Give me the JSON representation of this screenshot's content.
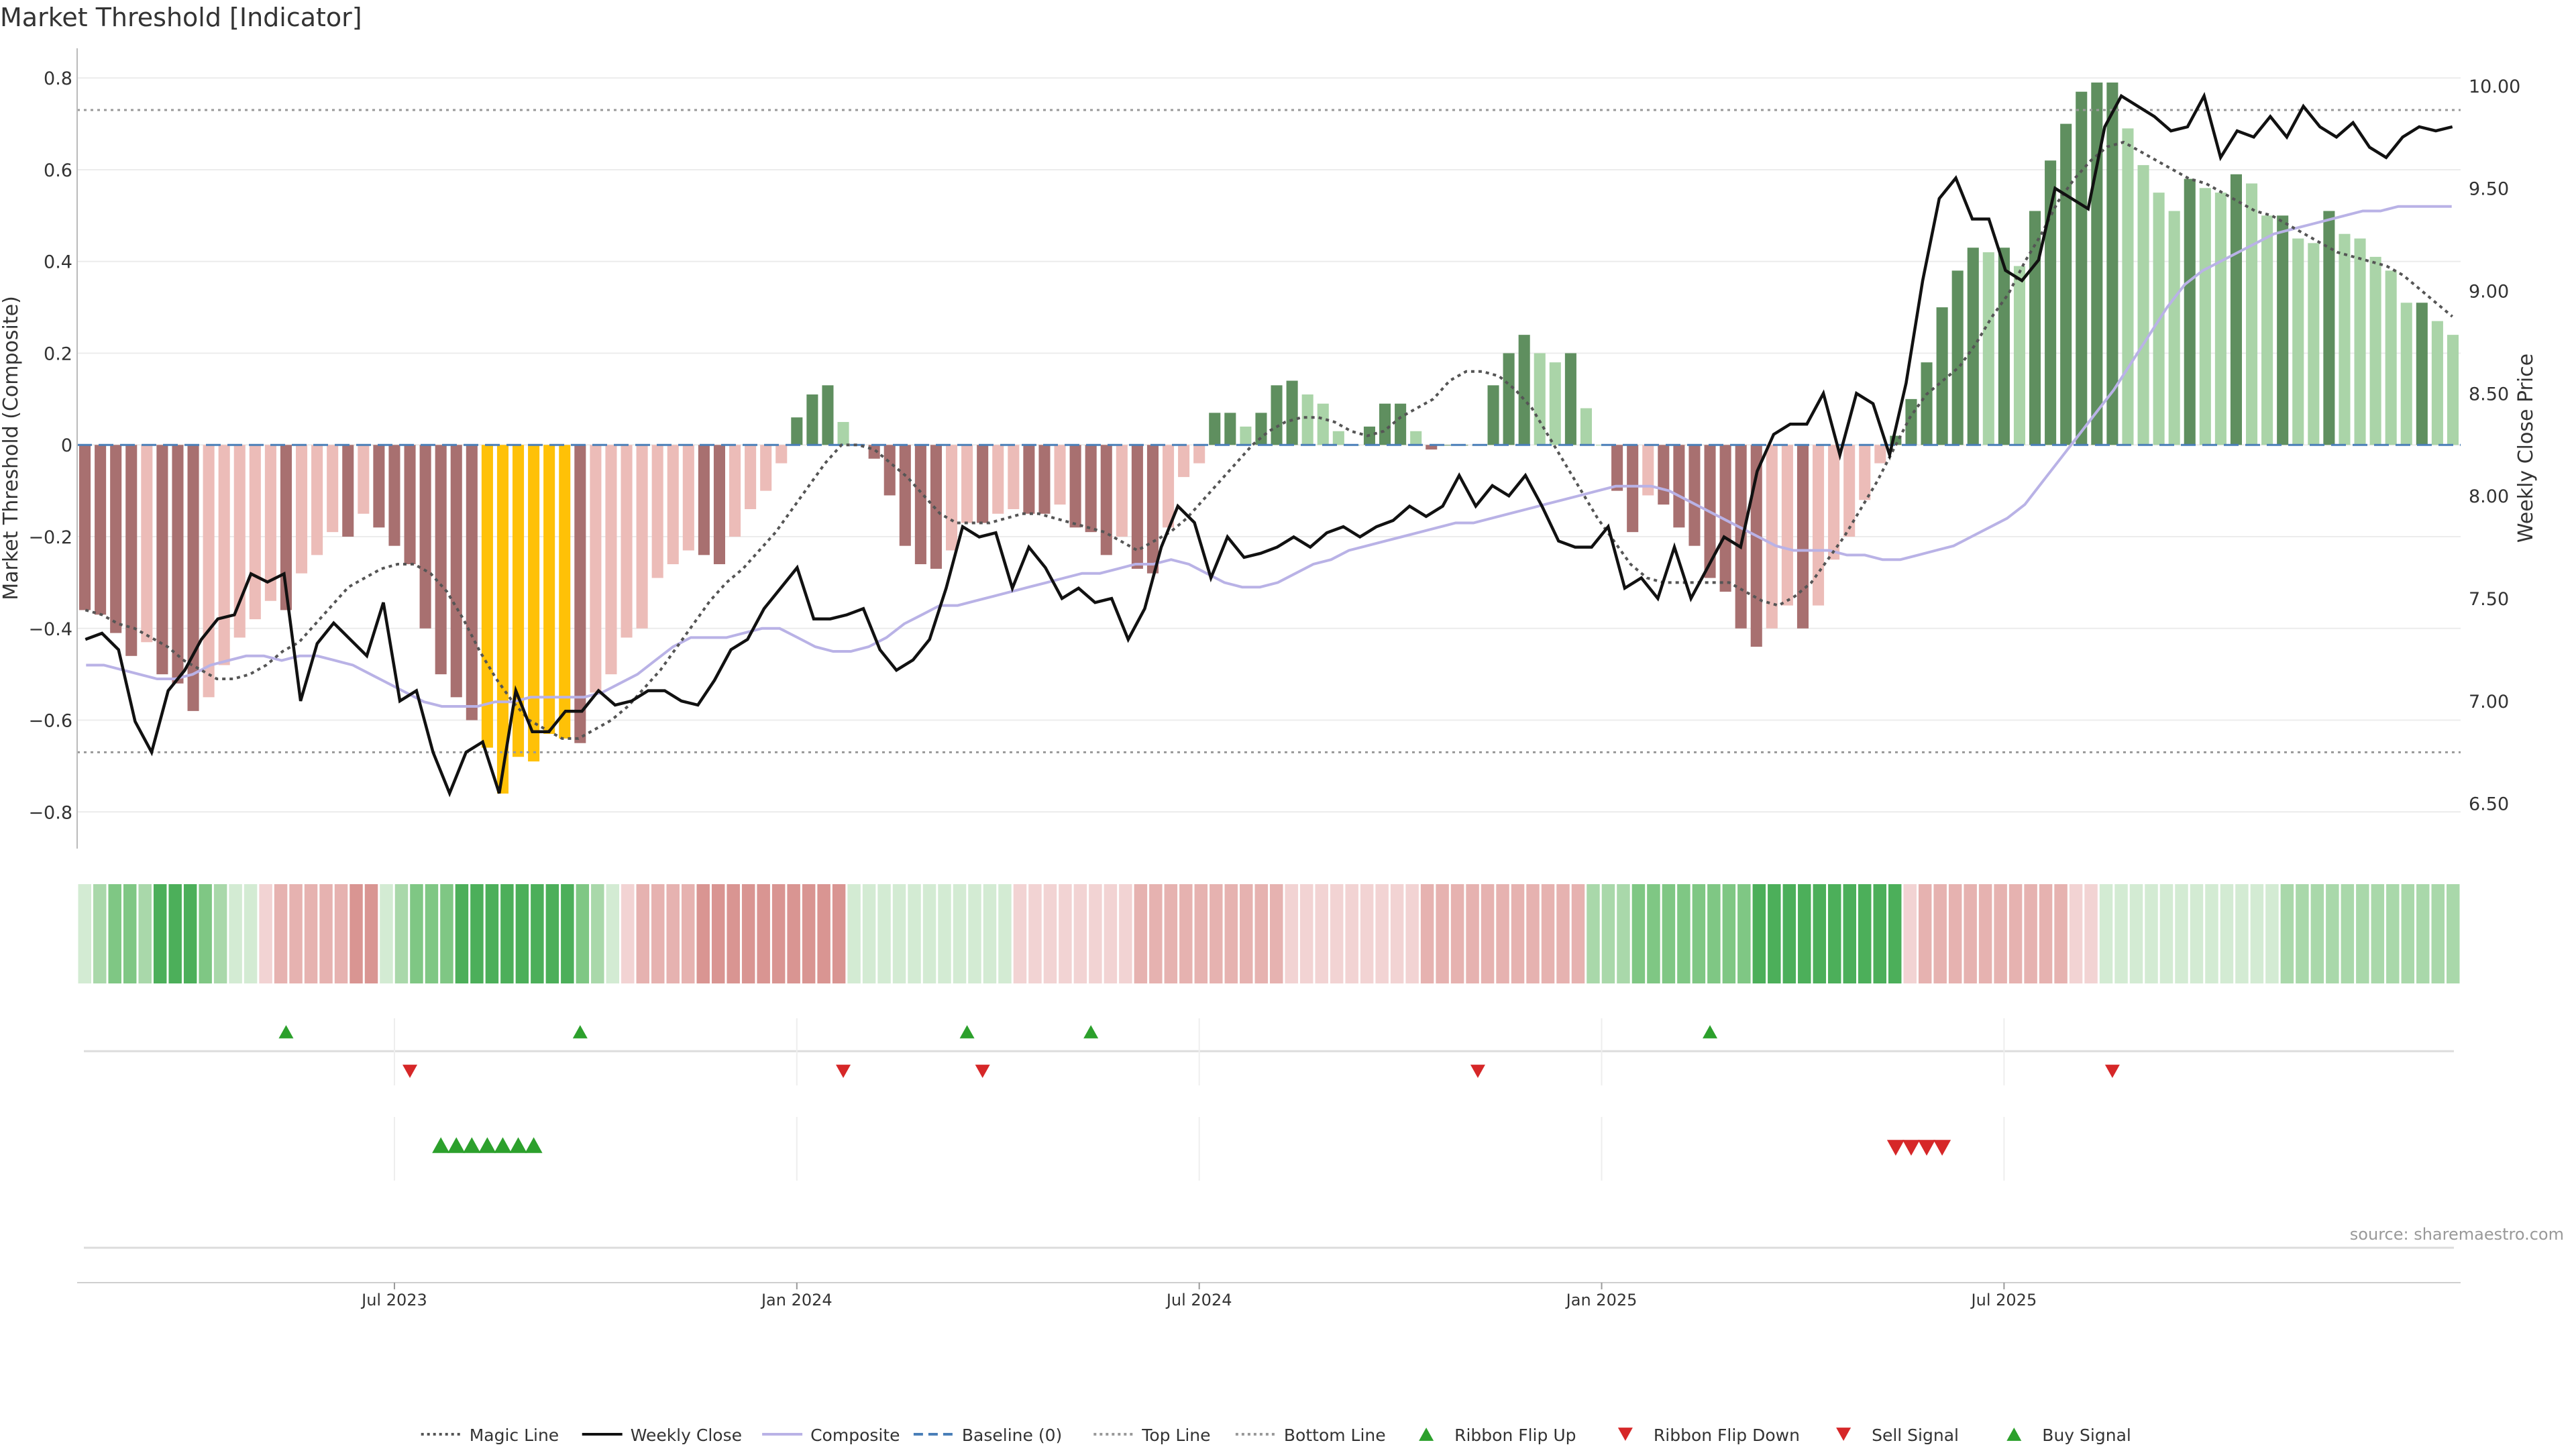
{
  "title": "Market Threshold [Indicator]",
  "source": "source: sharemaestro.com",
  "chart_data": {
    "type": "bar",
    "title": "Market Threshold [Indicator]",
    "ylabel_left": "Market Threshold (Composite)",
    "ylabel_right": "Weekly Close Price",
    "ylim_left": [
      -0.88,
      0.85
    ],
    "ylim_right": [
      6.28,
      10.15
    ],
    "yticks_left": [
      -0.8,
      -0.6,
      -0.4,
      -0.2,
      0,
      0.2,
      0.4,
      0.6,
      0.8
    ],
    "yticks_left_labels": [
      "−0.8",
      "−0.6",
      "−0.4",
      "−0.2",
      "0",
      "0.2",
      "0.4",
      "0.6",
      "0.8"
    ],
    "yticks_right": [
      6.5,
      7.0,
      7.5,
      8.0,
      8.5,
      9.0,
      9.5,
      10.0
    ],
    "yticks_right_labels": [
      "6.50",
      "7.00",
      "7.50",
      "8.00",
      "8.50",
      "9.00",
      "9.50",
      "10.00"
    ],
    "xticks": [
      {
        "label": "Jul 2023",
        "week": 20
      },
      {
        "label": "Jan 2024",
        "week": 46
      },
      {
        "label": "Jul 2024",
        "week": 72
      },
      {
        "label": "Jan 2025",
        "week": 98
      },
      {
        "label": "Jul 2025",
        "week": 124
      }
    ],
    "top_line": 0.73,
    "bottom_line": -0.67,
    "baseline": 0,
    "legend_position": "bottom-center",
    "composite_bars": [
      -0.36,
      -0.37,
      -0.41,
      -0.46,
      -0.43,
      -0.5,
      -0.52,
      -0.58,
      -0.55,
      -0.48,
      -0.42,
      -0.38,
      -0.34,
      -0.36,
      -0.28,
      -0.24,
      -0.19,
      -0.2,
      -0.15,
      -0.18,
      -0.22,
      -0.26,
      -0.4,
      -0.5,
      -0.55,
      -0.6,
      -0.66,
      -0.76,
      -0.68,
      -0.69,
      -0.63,
      -0.64,
      -0.65,
      -0.54,
      -0.5,
      -0.42,
      -0.4,
      -0.29,
      -0.26,
      -0.23,
      -0.24,
      -0.26,
      -0.2,
      -0.14,
      -0.1,
      -0.04,
      0.06,
      0.11,
      0.13,
      0.05,
      0.0,
      -0.03,
      -0.11,
      -0.22,
      -0.26,
      -0.27,
      -0.23,
      -0.17,
      -0.17,
      -0.15,
      -0.14,
      -0.15,
      -0.15,
      -0.13,
      -0.18,
      -0.19,
      -0.24,
      -0.2,
      -0.27,
      -0.28,
      -0.18,
      -0.07,
      -0.04,
      0.07,
      0.07,
      0.04,
      0.07,
      0.13,
      0.14,
      0.11,
      0.09,
      0.03,
      0.0,
      0.04,
      0.09,
      0.09,
      0.03,
      -0.01,
      0.0,
      0.0,
      0.0,
      0.13,
      0.2,
      0.24,
      0.2,
      0.18,
      0.2,
      0.08,
      0.0,
      -0.1,
      -0.19,
      -0.11,
      -0.13,
      -0.18,
      -0.22,
      -0.29,
      -0.32,
      -0.4,
      -0.44,
      -0.4,
      -0.35,
      -0.4,
      -0.35,
      -0.25,
      -0.2,
      -0.12,
      -0.04,
      0.02,
      0.1,
      0.18,
      0.3,
      0.38,
      0.43,
      0.42,
      0.43,
      0.39,
      0.51,
      0.62,
      0.7,
      0.77,
      0.79,
      0.79,
      0.69,
      0.61,
      0.55,
      0.51,
      0.58,
      0.56,
      0.55,
      0.59,
      0.57,
      0.5,
      0.5,
      0.45,
      0.44,
      0.51,
      0.46,
      0.45,
      0.41,
      0.38,
      0.31,
      0.31,
      0.27,
      0.24
    ],
    "magic_line": [
      -0.36,
      -0.37,
      -0.39,
      -0.4,
      -0.42,
      -0.44,
      -0.47,
      -0.49,
      -0.51,
      -0.51,
      -0.5,
      -0.48,
      -0.45,
      -0.43,
      -0.39,
      -0.35,
      -0.31,
      -0.29,
      -0.27,
      -0.26,
      -0.26,
      -0.28,
      -0.32,
      -0.38,
      -0.45,
      -0.51,
      -0.56,
      -0.6,
      -0.62,
      -0.64,
      -0.64,
      -0.62,
      -0.6,
      -0.57,
      -0.53,
      -0.49,
      -0.44,
      -0.39,
      -0.34,
      -0.3,
      -0.27,
      -0.23,
      -0.19,
      -0.14,
      -0.09,
      -0.04,
      0.0,
      0.0,
      -0.01,
      -0.04,
      -0.07,
      -0.11,
      -0.15,
      -0.17,
      -0.17,
      -0.17,
      -0.16,
      -0.15,
      -0.15,
      -0.16,
      -0.17,
      -0.18,
      -0.19,
      -0.21,
      -0.23,
      -0.21,
      -0.19,
      -0.16,
      -0.12,
      -0.08,
      -0.04,
      0.0,
      0.03,
      0.05,
      0.06,
      0.06,
      0.05,
      0.03,
      0.02,
      0.03,
      0.06,
      0.08,
      0.1,
      0.14,
      0.16,
      0.16,
      0.15,
      0.12,
      0.08,
      0.02,
      -0.04,
      -0.1,
      -0.16,
      -0.21,
      -0.26,
      -0.29,
      -0.3,
      -0.3,
      -0.3,
      -0.3,
      -0.3,
      -0.32,
      -0.34,
      -0.35,
      -0.33,
      -0.3,
      -0.25,
      -0.2,
      -0.14,
      -0.08,
      -0.01,
      0.06,
      0.11,
      0.14,
      0.17,
      0.22,
      0.28,
      0.33,
      0.4,
      0.46,
      0.53,
      0.58,
      0.62,
      0.65,
      0.66,
      0.64,
      0.62,
      0.6,
      0.58,
      0.57,
      0.55,
      0.53,
      0.51,
      0.5,
      0.48,
      0.46,
      0.44,
      0.42,
      0.41,
      0.4,
      0.39,
      0.37,
      0.34,
      0.31,
      0.28
    ],
    "composite_line": [
      -0.48,
      -0.48,
      -0.49,
      -0.5,
      -0.51,
      -0.51,
      -0.5,
      -0.48,
      -0.47,
      -0.46,
      -0.46,
      -0.47,
      -0.46,
      -0.46,
      -0.47,
      -0.48,
      -0.5,
      -0.52,
      -0.54,
      -0.56,
      -0.57,
      -0.57,
      -0.57,
      -0.56,
      -0.56,
      -0.55,
      -0.55,
      -0.55,
      -0.55,
      -0.54,
      -0.52,
      -0.5,
      -0.47,
      -0.44,
      -0.42,
      -0.42,
      -0.42,
      -0.41,
      -0.4,
      -0.4,
      -0.42,
      -0.44,
      -0.45,
      -0.45,
      -0.44,
      -0.42,
      -0.39,
      -0.37,
      -0.35,
      -0.35,
      -0.34,
      -0.33,
      -0.32,
      -0.31,
      -0.3,
      -0.29,
      -0.28,
      -0.28,
      -0.27,
      -0.26,
      -0.26,
      -0.25,
      -0.26,
      -0.28,
      -0.3,
      -0.31,
      -0.31,
      -0.3,
      -0.28,
      -0.26,
      -0.25,
      -0.23,
      -0.22,
      -0.21,
      -0.2,
      -0.19,
      -0.18,
      -0.17,
      -0.17,
      -0.16,
      -0.15,
      -0.14,
      -0.13,
      -0.12,
      -0.11,
      -0.1,
      -0.09,
      -0.09,
      -0.09,
      -0.1,
      -0.12,
      -0.14,
      -0.16,
      -0.18,
      -0.2,
      -0.22,
      -0.23,
      -0.23,
      -0.23,
      -0.24,
      -0.24,
      -0.25,
      -0.25,
      -0.24,
      -0.23,
      -0.22,
      -0.2,
      -0.18,
      -0.16,
      -0.13,
      -0.08,
      -0.03,
      0.02,
      0.07,
      0.12,
      0.18,
      0.24,
      0.3,
      0.35,
      0.38,
      0.4,
      0.42,
      0.44,
      0.46,
      0.47,
      0.48,
      0.49,
      0.5,
      0.51,
      0.51,
      0.52,
      0.52,
      0.52,
      0.52
    ],
    "weekly_close": [
      7.3,
      7.33,
      7.25,
      6.9,
      6.75,
      7.05,
      7.15,
      7.3,
      7.4,
      7.42,
      7.62,
      7.58,
      7.62,
      7.0,
      7.28,
      7.38,
      7.3,
      7.22,
      7.48,
      7.0,
      7.05,
      6.75,
      6.55,
      6.75,
      6.8,
      6.55,
      7.05,
      6.85,
      6.85,
      6.95,
      6.95,
      7.05,
      6.98,
      7.0,
      7.05,
      7.05,
      7.0,
      6.98,
      7.1,
      7.25,
      7.3,
      7.45,
      7.55,
      7.65,
      7.4,
      7.4,
      7.42,
      7.45,
      7.25,
      7.15,
      7.2,
      7.3,
      7.55,
      7.85,
      7.8,
      7.82,
      7.55,
      7.75,
      7.65,
      7.5,
      7.55,
      7.48,
      7.5,
      7.3,
      7.45,
      7.75,
      7.95,
      7.87,
      7.6,
      7.8,
      7.7,
      7.72,
      7.75,
      7.8,
      7.75,
      7.82,
      7.85,
      7.8,
      7.85,
      7.88,
      7.95,
      7.9,
      7.95,
      8.1,
      7.95,
      8.05,
      8.0,
      8.1,
      7.95,
      7.78,
      7.75,
      7.75,
      7.85,
      7.55,
      7.6,
      7.5,
      7.75,
      7.5,
      7.65,
      7.8,
      7.75,
      8.12,
      8.3,
      8.35,
      8.35,
      8.5,
      8.2,
      8.5,
      8.45,
      8.2,
      8.55,
      9.05,
      9.45,
      9.55,
      9.35,
      9.35,
      9.1,
      9.05,
      9.15,
      9.5,
      9.45,
      9.4,
      9.8,
      9.95,
      9.9,
      9.85,
      9.78,
      9.8,
      9.95,
      9.65,
      9.78,
      9.75,
      9.85,
      9.75,
      9.9,
      9.8,
      9.75,
      9.82,
      9.7,
      9.65,
      9.75,
      9.8,
      9.78,
      9.8
    ]
  },
  "ribbon": {
    "shades": [
      1,
      2,
      3,
      3,
      2,
      4,
      4,
      4,
      3,
      2,
      1,
      1,
      -1,
      -2,
      -2,
      -2,
      -2,
      -2,
      -3,
      -3,
      1,
      2,
      3,
      3,
      3,
      4,
      4,
      4,
      4,
      4,
      4,
      4,
      4,
      3,
      2,
      1,
      -1,
      -2,
      -2,
      -2,
      -2,
      -3,
      -3,
      -3,
      -3,
      -3,
      -3,
      -3,
      -3,
      -3,
      -3,
      1,
      1,
      1,
      1,
      1,
      1,
      1,
      1,
      1,
      1,
      1,
      -1,
      -1,
      -1,
      -1,
      -1,
      -1,
      -1,
      -1,
      -2,
      -2,
      -2,
      -2,
      -2,
      -2,
      -2,
      -2,
      -2,
      -2,
      -1,
      -1,
      -1,
      -1,
      -1,
      -1,
      -1,
      -1,
      -1,
      -2,
      -2,
      -2,
      -2,
      -2,
      -2,
      -2,
      -2,
      -2,
      -2,
      -2,
      2,
      2,
      2,
      3,
      3,
      3,
      3,
      3,
      3,
      3,
      3,
      4,
      4,
      4,
      4,
      4,
      4,
      4,
      4,
      4,
      4,
      -1,
      -2,
      -2,
      -2,
      -2,
      -2,
      -2,
      -2,
      -2,
      -2,
      -2,
      -1,
      -1,
      1,
      1,
      1,
      1,
      1,
      1,
      1,
      1,
      1,
      1,
      1,
      1,
      2,
      2,
      2,
      2,
      2,
      2,
      2,
      2,
      2,
      2,
      2,
      2
    ]
  },
  "signals": {
    "ribbon_flip_up_weeks": [
      13,
      32,
      57,
      65,
      105
    ],
    "ribbon_flip_down_weeks": [
      21,
      49,
      58,
      90,
      131
    ],
    "buy_signal_weeks": [
      23,
      24,
      25,
      26,
      27,
      28,
      29
    ],
    "sell_signal_weeks": [
      117,
      118,
      119,
      120
    ]
  },
  "legend": [
    {
      "label": "Magic Line",
      "style": "dotted",
      "color": "#555555"
    },
    {
      "label": "Weekly Close",
      "style": "solid",
      "color": "#111111"
    },
    {
      "label": "Composite",
      "style": "solid",
      "color": "#b9b2e6"
    },
    {
      "label": "Baseline (0)",
      "style": "dashed",
      "color": "#4a7fb8"
    },
    {
      "label": "Top Line",
      "style": "dotted",
      "color": "#999999"
    },
    {
      "label": "Bottom Line",
      "style": "dotted",
      "color": "#999999"
    },
    {
      "label": "Ribbon Flip Up",
      "style": "tri-up",
      "color": "#2ca02c"
    },
    {
      "label": "Ribbon Flip Down",
      "style": "tri-down",
      "color": "#d62728"
    },
    {
      "label": "Sell Signal",
      "style": "tri-down",
      "color": "#d62728"
    },
    {
      "label": "Buy Signal",
      "style": "tri-up",
      "color": "#2ca02c"
    }
  ],
  "colors": {
    "bar_pos_strong": "#5f8f5f",
    "bar_pos_weak": "#aad4a8",
    "bar_neg_strong": "#a87070",
    "bar_neg_weak": "#ecbcb8",
    "bar_extreme": "#ffc107",
    "up_signal": "#2ca02c",
    "down_signal": "#d62728"
  }
}
